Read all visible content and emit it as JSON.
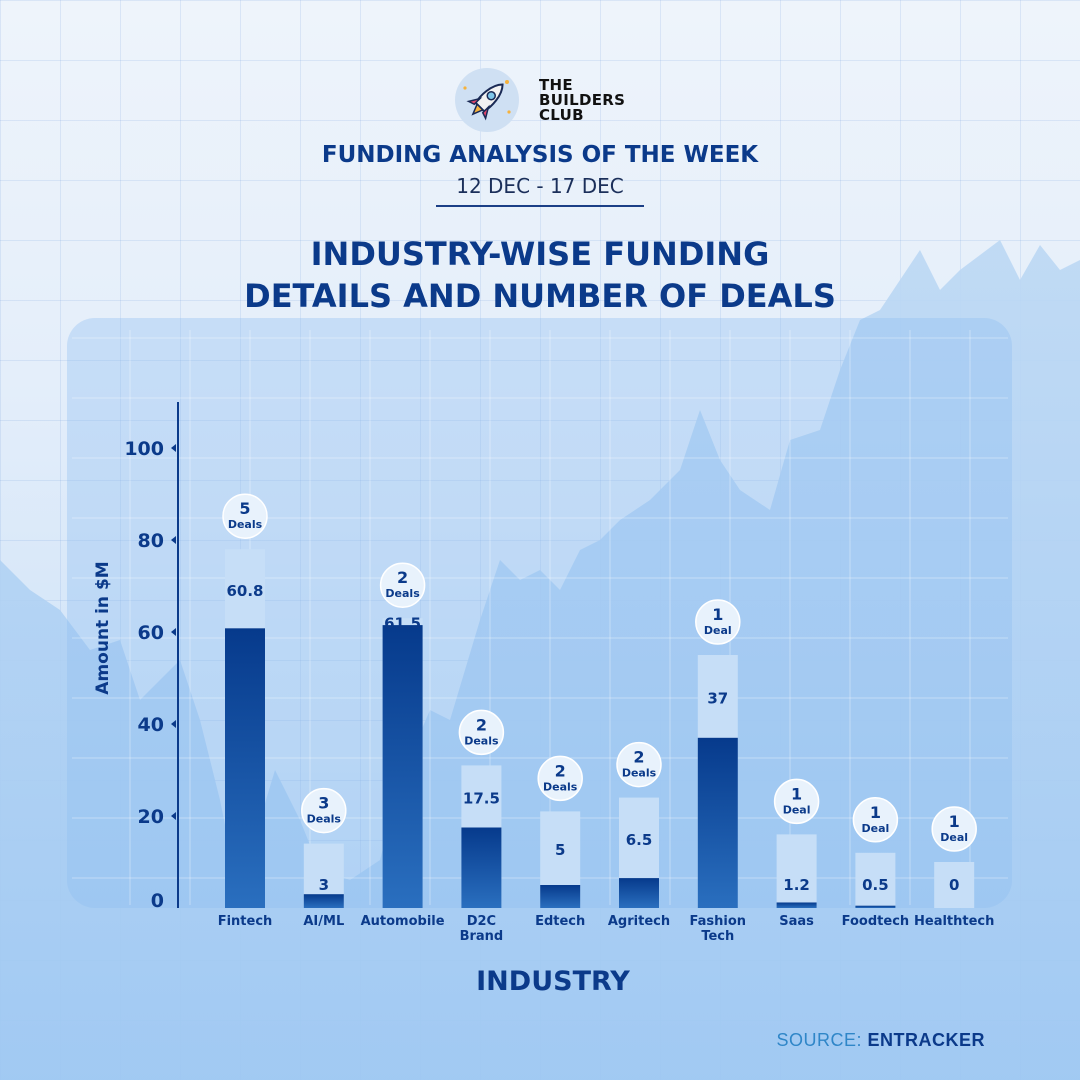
{
  "brand": {
    "line1": "THE",
    "line2": "BUILDERS",
    "line3": "CLUB",
    "logo_icon": "rocket-icon"
  },
  "header": {
    "title": "FUNDING ANALYSIS OF THE WEEK",
    "date_range": "12 DEC - 17 DEC"
  },
  "colors": {
    "dark_blue": "#0b3a8a",
    "bar_dark": "#063c8f",
    "bar_light": "#c7e0f8",
    "accent_source": "#2f86c8"
  },
  "source": {
    "label": "SOURCE:",
    "value": "ENTRACKER"
  },
  "chart_data": {
    "type": "bar",
    "title": "INDUSTRY-WISE FUNDING DETAILS AND NUMBER OF DEALS",
    "xlabel": "INDUSTRY",
    "ylabel": "Amount in $M",
    "ylim": [
      0,
      110
    ],
    "yticks": [
      0,
      20,
      40,
      60,
      80,
      100
    ],
    "grid": true,
    "categories": [
      "Fintech",
      "AI/ML",
      "Automobile",
      "D2C Brand",
      "Edtech",
      "Agritech",
      "Fashion Tech",
      "Saas",
      "Foodtech",
      "Healthtech"
    ],
    "values": [
      60.8,
      3,
      61.5,
      17.5,
      5,
      6.5,
      37,
      1.2,
      0.5,
      0
    ],
    "deals": [
      5,
      3,
      2,
      2,
      2,
      2,
      1,
      1,
      1,
      1
    ],
    "deal_labels": [
      "Deals",
      "Deals",
      "Deals",
      "Deals",
      "Deals",
      "Deals",
      "Deal",
      "Deal",
      "Deal",
      "Deal"
    ]
  }
}
